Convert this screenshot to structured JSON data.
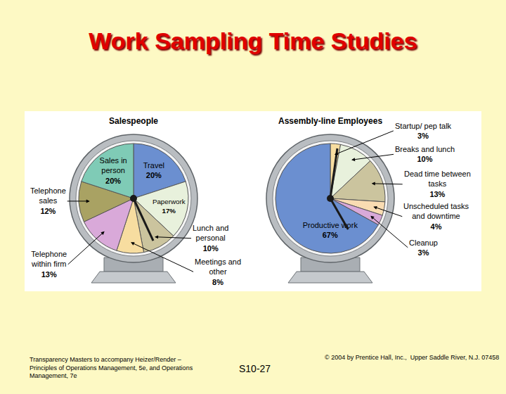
{
  "title": "Work Sampling Time Studies",
  "chart_data": [
    {
      "type": "pie",
      "title": "Salespeople",
      "categories": [
        "Travel",
        "Paperwork",
        "Lunch and personal",
        "Meetings and other",
        "Telephone within firm",
        "Telephone sales",
        "Sales in person"
      ],
      "values": [
        20,
        17,
        10,
        8,
        13,
        12,
        20
      ],
      "value_labels": [
        "20%",
        "17%",
        "10%",
        "8%",
        "13%",
        "12%",
        "20%"
      ],
      "colors": [
        "#6b8fd0",
        "#e8f1dc",
        "#cbc49e",
        "#f7dda0",
        "#d9a9d9",
        "#a9a263",
        "#7fcbb6"
      ],
      "data_labels": true
    },
    {
      "type": "pie",
      "title": "Assembly-line Employees",
      "categories": [
        "Startup/ pep talk",
        "Breaks and lunch",
        "Dead time between tasks",
        "Unscheduled tasks and downtime",
        "Cleanup",
        "Productive work"
      ],
      "values": [
        3,
        10,
        13,
        4,
        3,
        67
      ],
      "value_labels": [
        "3%",
        "10%",
        "13%",
        "4%",
        "3%",
        "67%"
      ],
      "colors": [
        "#f7dda0",
        "#e8f1dc",
        "#cbc49e",
        "#f9dcb2",
        "#d9a9d9",
        "#6b8fd0"
      ],
      "data_labels": true
    }
  ],
  "footer": {
    "left": "Transparency Masters to accompany Heizer/Render – Principles of Operations Management, 5e, and Operations Management, 7e",
    "center": "S10-27",
    "right": "© 2004 by Prentice Hall, Inc.,  Upper Saddle River, N.J. 07458"
  }
}
